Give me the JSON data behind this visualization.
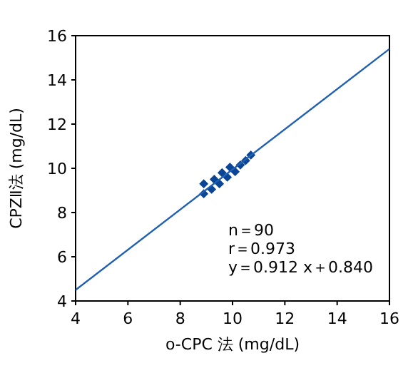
{
  "chart_data": {
    "type": "scatter",
    "xlabel": "o-CPC 法 (mg/dL)",
    "ylabel": "CPZⅡ法 (mg/dL)",
    "xlim": [
      4,
      16
    ],
    "ylim": [
      4,
      16
    ],
    "xticks": [
      4,
      6,
      8,
      10,
      12,
      14,
      16
    ],
    "yticks": [
      4,
      6,
      8,
      10,
      12,
      14,
      16
    ],
    "marker": "diamond",
    "annotations": [
      "n＝90",
      "r＝0.973",
      "y＝0.912 x＋0.840"
    ],
    "series": [
      {
        "color": "#0b4596",
        "x": [
          8.9,
          8.9,
          9.2,
          9.3,
          9.5,
          9.6,
          9.8,
          9.9,
          10.1,
          10.3,
          10.5,
          10.7
        ],
        "values": [
          8.85,
          9.3,
          9.05,
          9.5,
          9.3,
          9.8,
          9.6,
          10.05,
          9.85,
          10.15,
          10.35,
          10.6
        ]
      },
      {
        "type": "line",
        "color": "#2060b0",
        "marker": "none",
        "x": [
          4,
          16
        ],
        "values": [
          4.5,
          15.4
        ]
      }
    ]
  }
}
